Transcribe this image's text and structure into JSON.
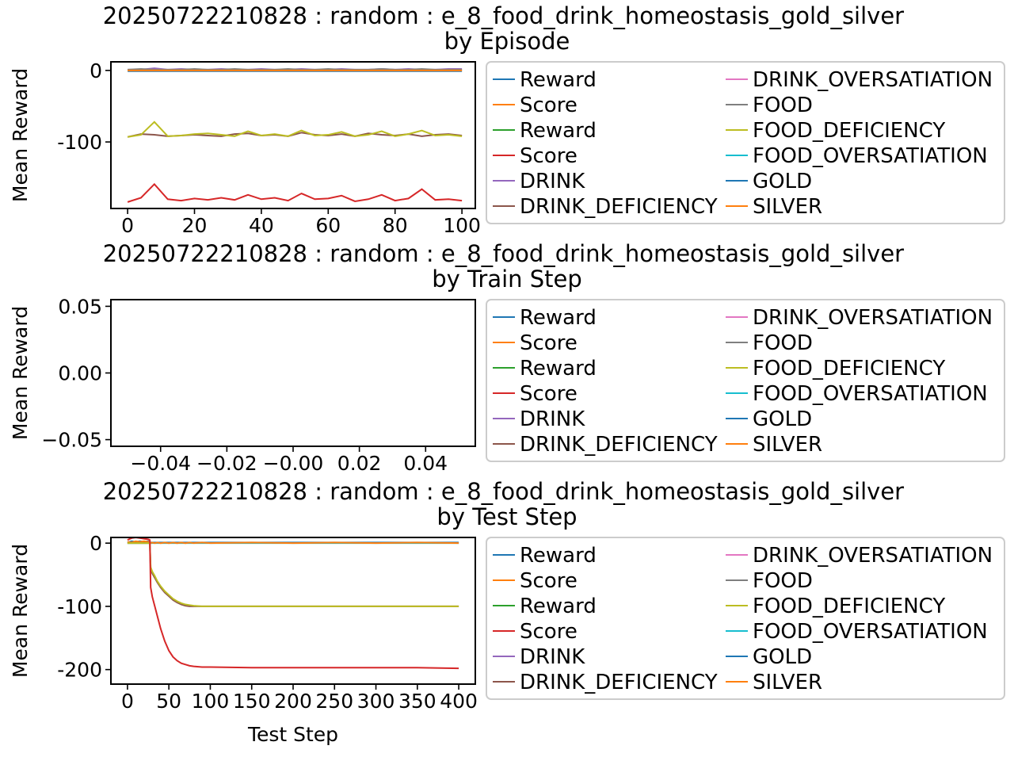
{
  "colors": {
    "Reward": "#1f77b4",
    "Score": "#ff7f0e",
    "Reward2": "#2ca02c",
    "Score2": "#d62728",
    "DRINK": "#9467bd",
    "DRINK_DEFICIENCY": "#8c564b",
    "DRINK_OVERSATIATION": "#e377c2",
    "FOOD": "#7f7f7f",
    "FOOD_DEFICIENCY": "#bcbd22",
    "FOOD_OVERSATIATION": "#17becf",
    "GOLD": "#1f77b4",
    "SILVER": "#ff7f0e"
  },
  "legend_entries": [
    {
      "label": "Reward",
      "color": "#1f77b4"
    },
    {
      "label": "Score",
      "color": "#ff7f0e"
    },
    {
      "label": "Reward",
      "color": "#2ca02c"
    },
    {
      "label": "Score",
      "color": "#d62728"
    },
    {
      "label": "DRINK",
      "color": "#9467bd"
    },
    {
      "label": "DRINK_DEFICIENCY",
      "color": "#8c564b"
    },
    {
      "label": "DRINK_OVERSATIATION",
      "color": "#e377c2"
    },
    {
      "label": "FOOD",
      "color": "#7f7f7f"
    },
    {
      "label": "FOOD_DEFICIENCY",
      "color": "#bcbd22"
    },
    {
      "label": "FOOD_OVERSATIATION",
      "color": "#17becf"
    },
    {
      "label": "GOLD",
      "color": "#1f77b4"
    },
    {
      "label": "SILVER",
      "color": "#ff7f0e"
    }
  ],
  "chart_data": [
    {
      "type": "line",
      "title": "20250722210828 : random : e_8_food_drink_homeostasis_gold_silver by Episode",
      "xlabel": "",
      "ylabel": "Mean Reward",
      "xlim": [
        -5,
        104
      ],
      "ylim": [
        -193,
        12
      ],
      "xticks": [
        0,
        20,
        40,
        60,
        80,
        100
      ],
      "yticks": [
        0,
        -100
      ],
      "legend": "right",
      "x": [
        0,
        4,
        8,
        12,
        16,
        20,
        24,
        28,
        32,
        36,
        40,
        44,
        48,
        52,
        56,
        60,
        64,
        68,
        72,
        76,
        80,
        84,
        88,
        92,
        96,
        100
      ],
      "series": [
        {
          "name": "Reward",
          "color": "#1f77b4",
          "values": [
            -1,
            -1,
            -1,
            -1,
            -1,
            -1,
            -1,
            -1,
            -1,
            -1,
            -1,
            -1,
            -1,
            -1,
            -1,
            -1,
            -1,
            -1,
            -1,
            -1,
            -1,
            -1,
            -1,
            -1,
            -1,
            -1
          ]
        },
        {
          "name": "DRINK",
          "color": "#9467bd",
          "values": [
            1,
            1,
            3,
            1,
            2,
            1,
            1,
            2,
            1,
            1,
            2,
            1,
            1,
            2,
            1,
            1,
            2,
            1,
            1,
            2,
            1,
            2,
            1,
            1,
            2,
            2
          ]
        },
        {
          "name": "FOOD",
          "color": "#7f7f7f",
          "values": [
            1,
            2,
            1,
            1,
            1,
            2,
            1,
            1,
            2,
            1,
            1,
            1,
            2,
            1,
            1,
            2,
            1,
            1,
            1,
            2,
            1,
            1,
            2,
            1,
            1,
            1
          ]
        },
        {
          "name": "Score",
          "color": "#ff7f0e",
          "values": [
            0,
            0,
            0,
            0,
            0,
            0,
            0,
            0,
            0,
            0,
            0,
            0,
            0,
            0,
            0,
            0,
            0,
            0,
            0,
            0,
            0,
            0,
            0,
            0,
            0,
            0
          ]
        },
        {
          "name": "DRINK_DEFICIENCY",
          "color": "#8c564b",
          "values": [
            -93,
            -89,
            -90,
            -92,
            -91,
            -90,
            -91,
            -92,
            -89,
            -88,
            -91,
            -90,
            -92,
            -87,
            -90,
            -91,
            -89,
            -92,
            -88,
            -90,
            -91,
            -89,
            -92,
            -90,
            -89,
            -91
          ]
        },
        {
          "name": "FOOD_DEFICIENCY",
          "color": "#bcbd22",
          "values": [
            -93,
            -90,
            -72,
            -92,
            -91,
            -89,
            -88,
            -90,
            -92,
            -85,
            -91,
            -89,
            -92,
            -84,
            -91,
            -90,
            -86,
            -92,
            -90,
            -85,
            -92,
            -89,
            -84,
            -91,
            -90,
            -92
          ]
        },
        {
          "name": "Score",
          "color": "#d62728",
          "values": [
            -184,
            -178,
            -159,
            -180,
            -182,
            -179,
            -181,
            -178,
            -181,
            -174,
            -180,
            -178,
            -182,
            -172,
            -180,
            -179,
            -175,
            -183,
            -180,
            -174,
            -182,
            -179,
            -166,
            -181,
            -180,
            -182
          ]
        }
      ]
    },
    {
      "type": "line",
      "title": "20250722210828 : random : e_8_food_drink_homeostasis_gold_silver by Train Step",
      "xlabel": "",
      "ylabel": "Mean Reward",
      "xlim": [
        -0.055,
        0.055
      ],
      "ylim": [
        -0.055,
        0.055
      ],
      "xticks": [
        "−0.04",
        "−0.02",
        "−0.00",
        "0.02",
        "0.04"
      ],
      "xtick_values": [
        -0.04,
        -0.02,
        0,
        0.02,
        0.04
      ],
      "yticks": [
        "0.05",
        "0.00",
        "−0.05"
      ],
      "ytick_values": [
        0.05,
        0,
        -0.05
      ],
      "series": []
    },
    {
      "type": "line",
      "title": "20250722210828 : random : e_8_food_drink_homeostasis_gold_silver by Test Step",
      "xlabel": "Test Step",
      "ylabel": "Mean Reward",
      "xlim": [
        -20,
        420
      ],
      "ylim": [
        -223,
        9
      ],
      "xticks": [
        0,
        50,
        100,
        150,
        200,
        250,
        300,
        350,
        400
      ],
      "yticks": [
        0,
        -100,
        -200
      ],
      "x": [
        0,
        5,
        10,
        15,
        20,
        25,
        27,
        28,
        30,
        33,
        36,
        40,
        45,
        50,
        55,
        60,
        65,
        70,
        75,
        80,
        90,
        100,
        150,
        200,
        250,
        300,
        350,
        400
      ],
      "series": [
        {
          "name": "FOOD_OVERSATIATION",
          "color": "#17becf",
          "values": [
            0,
            0,
            0,
            0,
            0,
            0,
            0,
            0,
            0,
            0,
            0,
            0,
            0,
            0,
            0,
            0,
            0,
            0,
            0,
            0,
            0,
            0,
            0,
            0,
            0,
            0,
            0,
            0
          ]
        },
        {
          "name": "Reward",
          "color": "#1f77b4",
          "values": [
            1,
            3,
            2,
            3,
            2,
            3,
            2,
            1,
            1,
            1,
            1,
            1,
            1,
            1,
            1,
            1,
            1,
            1,
            1,
            1,
            1,
            1,
            1,
            1,
            1,
            1,
            1,
            1
          ]
        },
        {
          "name": "SILVER",
          "color": "#ff7f0e",
          "values": [
            2,
            1,
            3,
            2,
            3,
            2,
            2,
            0,
            1,
            0,
            1,
            0,
            1,
            0,
            1,
            0,
            1,
            0,
            1,
            0,
            1,
            0,
            1,
            0,
            1,
            0,
            1,
            0
          ]
        },
        {
          "name": "DRINK_DEFICIENCY",
          "color": "#8c564b",
          "values": [
            0,
            0,
            0,
            0,
            0,
            0,
            0,
            -40,
            -48,
            -55,
            -62,
            -70,
            -78,
            -84,
            -90,
            -94,
            -97,
            -99,
            -100,
            -100,
            -100,
            -100,
            -100,
            -100,
            -100,
            -100,
            -100,
            -100
          ]
        },
        {
          "name": "FOOD_DEFICIENCY",
          "color": "#bcbd22",
          "values": [
            0,
            0,
            0,
            0,
            0,
            0,
            0,
            -38,
            -45,
            -52,
            -60,
            -68,
            -76,
            -82,
            -88,
            -92,
            -95,
            -97,
            -98,
            -99,
            -100,
            -100,
            -100,
            -100,
            -100,
            -100,
            -100,
            -100
          ]
        },
        {
          "name": "Score",
          "color": "#d62728",
          "values": [
            5,
            8,
            9,
            8,
            7,
            6,
            5,
            -70,
            -85,
            -100,
            -115,
            -135,
            -155,
            -170,
            -180,
            -186,
            -190,
            -192,
            -194,
            -195,
            -196,
            -196,
            -197,
            -197,
            -197,
            -197,
            -197,
            -198
          ]
        }
      ]
    }
  ]
}
